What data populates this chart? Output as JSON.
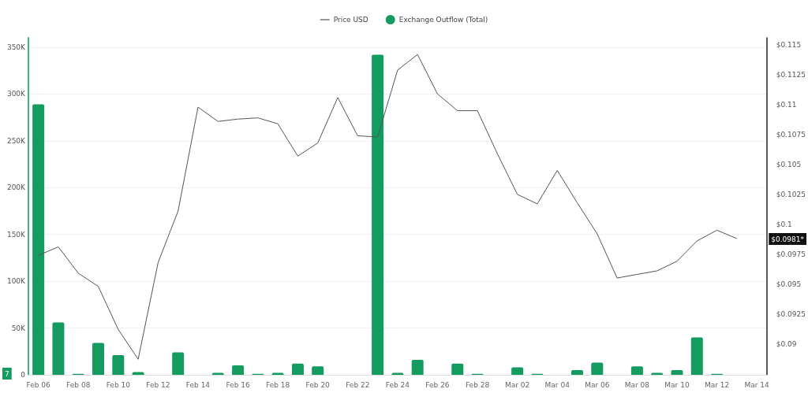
{
  "chart_data": {
    "type": "bar",
    "categories": [
      "Feb 06",
      null,
      "Feb 08",
      null,
      "Feb 10",
      null,
      "Feb 12",
      null,
      "Feb 14",
      null,
      "Feb 16",
      null,
      "Feb 18",
      null,
      "Feb 20",
      null,
      "Feb 22",
      null,
      "Feb 24",
      null,
      "Feb 26",
      null,
      "Feb 28",
      null,
      "Mar 02",
      null,
      "Mar 04",
      null,
      "Mar 06",
      null,
      "Mar 08",
      null,
      "Mar 10",
      null,
      "Mar 12",
      null,
      "Mar 14"
    ],
    "series": [
      {
        "name": "Price USD",
        "type": "line",
        "axis": "y2",
        "color": "#555555",
        "values": [
          0.0974,
          0.0981,
          0.0959,
          0.0948,
          0.0912,
          0.0887,
          0.0968,
          0.1011,
          0.1098,
          0.1086,
          0.1088,
          0.1089,
          0.1084,
          0.1057,
          0.1068,
          0.1106,
          0.1074,
          0.1073,
          0.1129,
          0.1142,
          0.1109,
          0.1095,
          0.1095,
          0.1059,
          0.1025,
          0.1017,
          0.1045,
          0.1018,
          0.0992,
          0.0955,
          0.0958,
          0.0961,
          0.0969,
          0.0986,
          0.0995,
          0.0988,
          null
        ]
      },
      {
        "name": "Exchange Outflow (Total)",
        "color": "#149b5f",
        "values": [
          289000,
          56000,
          1000,
          34000,
          21000,
          3000,
          null,
          24000,
          null,
          2000,
          10000,
          1000,
          2000,
          12000,
          9000,
          null,
          null,
          342000,
          2000,
          16000,
          null,
          12000,
          1000,
          null,
          8000,
          1000,
          null,
          5000,
          13000,
          null,
          9000,
          2000,
          5000,
          40000,
          1000,
          null,
          null
        ]
      }
    ],
    "ylim": [
      0,
      360000
    ],
    "yticks": [
      {
        "value": 0,
        "label": "0"
      },
      {
        "value": 50000,
        "label": "50K"
      },
      {
        "value": 100000,
        "label": "100K"
      },
      {
        "value": 150000,
        "label": "150K"
      },
      {
        "value": 200000,
        "label": "200K"
      },
      {
        "value": 250000,
        "label": "250K"
      },
      {
        "value": 300000,
        "label": "300K"
      },
      {
        "value": 350000,
        "label": "350K"
      }
    ],
    "y2lim": [
      0.0874,
      0.1156
    ],
    "y2ticks": [
      {
        "value": 0.09,
        "label": "$0.09"
      },
      {
        "value": 0.0925,
        "label": "$0.0925"
      },
      {
        "value": 0.095,
        "label": "$0.095"
      },
      {
        "value": 0.0975,
        "label": "$0.0975"
      },
      {
        "value": 0.1,
        "label": "$0.1"
      },
      {
        "value": 0.1025,
        "label": "$0.1025"
      },
      {
        "value": 0.105,
        "label": "$0.105"
      },
      {
        "value": 0.1075,
        "label": "$0.1075"
      },
      {
        "value": 0.11,
        "label": "$0.11"
      },
      {
        "value": 0.1125,
        "label": "$0.1125"
      },
      {
        "value": 0.115,
        "label": "$0.115"
      }
    ],
    "grid": "y",
    "legend": "top",
    "marker": "none",
    "annotations": [
      "$0.0981*",
      "7"
    ]
  }
}
